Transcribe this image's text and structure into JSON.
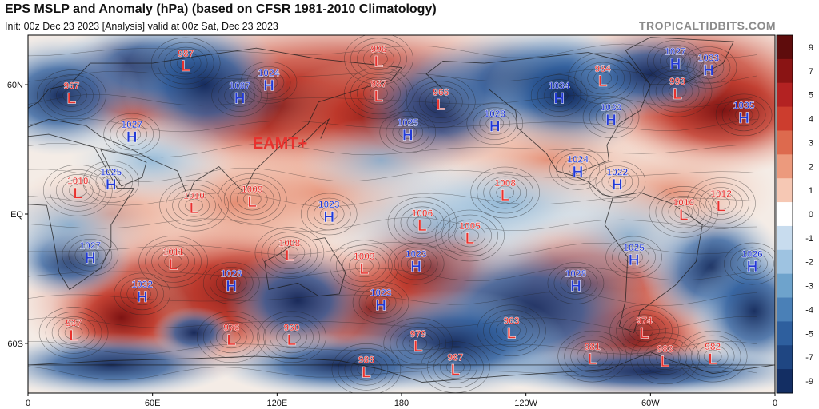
{
  "header": {
    "title": "EPS MSLP and Anomaly (hPa) (based on CFSR 1981-2010 Climatology)",
    "subtitle": "Init: 00z Dec 23 2023   [Analysis]   valid at 00z Sat, Dec 23 2023",
    "brand": "TROPICALTIDBITS.COM"
  },
  "map": {
    "lat_labels": [
      "60N",
      "EQ",
      "60S"
    ],
    "lon_labels": [
      "0",
      "60E",
      "120E",
      "180",
      "120W",
      "60W",
      "0"
    ],
    "annotation": "EAMT+"
  },
  "colorbar": {
    "ticks": [
      "9",
      "7",
      "5",
      "4",
      "3",
      "2",
      "1",
      "0",
      "-1",
      "-2",
      "-3",
      "-4",
      "-5",
      "-7",
      "-9"
    ],
    "colors": [
      "#5e0c0c",
      "#8a1414",
      "#b32222",
      "#cc3d2e",
      "#dd6a4e",
      "#ec9a7d",
      "#f6c8b4",
      "#ffffff",
      "#c8dcee",
      "#9ec3e1",
      "#6ea3cc",
      "#4a80b7",
      "#2e5f9e",
      "#1f4682",
      "#132e63"
    ]
  },
  "pressure_centers": [
    {
      "type": "L",
      "value": "987",
      "lon": 76,
      "lat": 70
    },
    {
      "type": "L",
      "value": "996",
      "lon": 169,
      "lat": 72
    },
    {
      "type": "H",
      "value": "1024",
      "lon": 116,
      "lat": 61
    },
    {
      "type": "L",
      "value": "967",
      "lon": 21,
      "lat": 55
    },
    {
      "type": "H",
      "value": "1087",
      "lon": 102,
      "lat": 55
    },
    {
      "type": "L",
      "value": "987",
      "lon": 169,
      "lat": 56
    },
    {
      "type": "L",
      "value": "966",
      "lon": 199,
      "lat": 52
    },
    {
      "type": "H",
      "value": "1028",
      "lon": 225,
      "lat": 42
    },
    {
      "type": "H",
      "value": "1025",
      "lon": 183,
      "lat": 38
    },
    {
      "type": "H",
      "value": "1027",
      "lon": 312,
      "lat": 71
    },
    {
      "type": "H",
      "value": "1033",
      "lon": 328,
      "lat": 68
    },
    {
      "type": "L",
      "value": "984",
      "lon": 277,
      "lat": 63
    },
    {
      "type": "L",
      "value": "993",
      "lon": 313,
      "lat": 57
    },
    {
      "type": "H",
      "value": "1033",
      "lon": 281,
      "lat": 45
    },
    {
      "type": "H",
      "value": "1035",
      "lon": 345,
      "lat": 46
    },
    {
      "type": "H",
      "value": "1034",
      "lon": 256,
      "lat": 55
    },
    {
      "type": "H",
      "value": "1024",
      "lon": 265,
      "lat": 21
    },
    {
      "type": "H",
      "value": "1022",
      "lon": 284,
      "lat": 15
    },
    {
      "type": "H",
      "value": "1027",
      "lon": 50,
      "lat": 37
    },
    {
      "type": "H",
      "value": "1025",
      "lon": 40,
      "lat": 15
    },
    {
      "type": "L",
      "value": "1010",
      "lon": 24,
      "lat": 11
    },
    {
      "type": "L",
      "value": "1010",
      "lon": 80,
      "lat": 4
    },
    {
      "type": "L",
      "value": "1009",
      "lon": 108,
      "lat": 7
    },
    {
      "type": "H",
      "value": "1023",
      "lon": 145,
      "lat": 0
    },
    {
      "type": "L",
      "value": "1008",
      "lon": 230,
      "lat": 10
    },
    {
      "type": "L",
      "value": "1006",
      "lon": 190,
      "lat": -4
    },
    {
      "type": "L",
      "value": "1005",
      "lon": 213,
      "lat": -10
    },
    {
      "type": "L",
      "value": "1010",
      "lon": 316,
      "lat": 1
    },
    {
      "type": "L",
      "value": "1012",
      "lon": 334,
      "lat": 5
    },
    {
      "type": "H",
      "value": "1027",
      "lon": 30,
      "lat": -19
    },
    {
      "type": "L",
      "value": "1011",
      "lon": 70,
      "lat": -22
    },
    {
      "type": "L",
      "value": "1008",
      "lon": 126,
      "lat": -18
    },
    {
      "type": "L",
      "value": "1003",
      "lon": 162,
      "lat": -24
    },
    {
      "type": "H",
      "value": "1023",
      "lon": 187,
      "lat": -23
    },
    {
      "type": "H",
      "value": "1025",
      "lon": 292,
      "lat": -20
    },
    {
      "type": "H",
      "value": "1026",
      "lon": 349,
      "lat": -23
    },
    {
      "type": "H",
      "value": "1032",
      "lon": 55,
      "lat": -37
    },
    {
      "type": "H",
      "value": "1028",
      "lon": 98,
      "lat": -32
    },
    {
      "type": "H",
      "value": "1023",
      "lon": 170,
      "lat": -41
    },
    {
      "type": "H",
      "value": "1028",
      "lon": 264,
      "lat": -32
    },
    {
      "type": "L",
      "value": "937",
      "lon": 22,
      "lat": -55
    },
    {
      "type": "L",
      "value": "976",
      "lon": 98,
      "lat": -57
    },
    {
      "type": "L",
      "value": "960",
      "lon": 127,
      "lat": -57
    },
    {
      "type": "L",
      "value": "963",
      "lon": 233,
      "lat": -54
    },
    {
      "type": "L",
      "value": "979",
      "lon": 188,
      "lat": -60
    },
    {
      "type": "L",
      "value": "974",
      "lon": 297,
      "lat": -54
    },
    {
      "type": "L",
      "value": "981",
      "lon": 272,
      "lat": -66
    },
    {
      "type": "L",
      "value": "983",
      "lon": 307,
      "lat": -67
    },
    {
      "type": "L",
      "value": "982",
      "lon": 330,
      "lat": -66
    },
    {
      "type": "L",
      "value": "988",
      "lon": 163,
      "lat": -72
    },
    {
      "type": "L",
      "value": "987",
      "lon": 206,
      "lat": -71
    }
  ]
}
